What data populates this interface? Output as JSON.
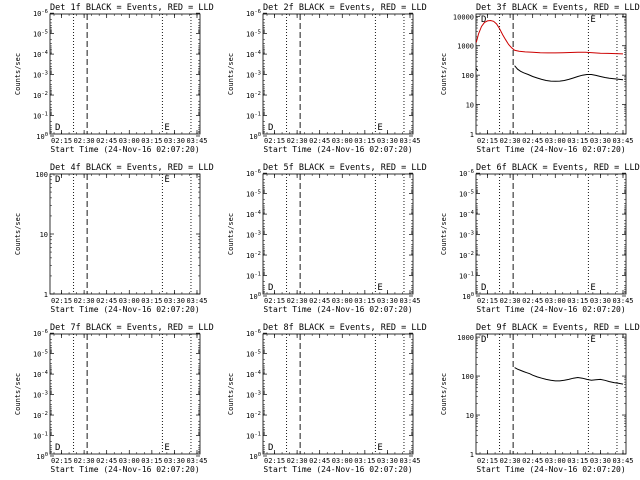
{
  "chart_data": [
    {
      "type": "line",
      "title": "Det 1f BLACK = Events, RED = LLD",
      "xlabel": "Start Time (24-Nov-16 02:07:20)",
      "ylabel": "Counts/sec",
      "yscale": "log",
      "ylim": [
        0.8,
        1.1e-06
      ],
      "yticks": [
        "10^0",
        "10^-1",
        "10^-2",
        "10^-3",
        "10^-4",
        "10^-5",
        "10^-6"
      ],
      "xticks": [
        "02:15",
        "02:30",
        "02:45",
        "03:00",
        "03:15",
        "03:30",
        "03:45"
      ],
      "xlim": [
        "02:07:20",
        "03:47:00"
      ],
      "dotted_lines": [
        "02:23:00",
        "03:22:00",
        "03:41:00"
      ],
      "dashed_lines": [
        "02:32:00"
      ],
      "annotations": [
        {
          "text": "D",
          "position": "bottom-left"
        },
        {
          "text": "E",
          "position": "bottom-right"
        }
      ],
      "series": []
    },
    {
      "type": "line",
      "title": "Det 2f BLACK = Events, RED = LLD",
      "xlabel": "Start Time (24-Nov-16 02:07:20)",
      "ylabel": "Counts/sec",
      "yscale": "log",
      "ylim": [
        0.8,
        1.1e-06
      ],
      "yticks": [
        "10^0",
        "10^-1",
        "10^-2",
        "10^-3",
        "10^-4",
        "10^-5",
        "10^-6"
      ],
      "xticks": [
        "02:15",
        "02:30",
        "02:45",
        "03:00",
        "03:15",
        "03:30",
        "03:45"
      ],
      "xlim": [
        "02:07:20",
        "03:47:00"
      ],
      "dotted_lines": [
        "02:23:00",
        "03:22:00",
        "03:41:00"
      ],
      "dashed_lines": [
        "02:32:00"
      ],
      "annotations": [
        {
          "text": "D",
          "position": "bottom-left"
        },
        {
          "text": "E",
          "position": "bottom-right"
        }
      ],
      "series": []
    },
    {
      "type": "line",
      "title": "Det 3f BLACK = Events, RED = LLD",
      "xlabel": "Start Time (24-Nov-16 02:07:20)",
      "ylabel": "Counts/sec",
      "yscale": "log",
      "ylim": [
        1,
        12000
      ],
      "yticks": [
        "1",
        "10",
        "100",
        "1000",
        "10000"
      ],
      "xticks": [
        "02:15",
        "02:30",
        "02:45",
        "03:00",
        "03:15",
        "03:30",
        "03:45"
      ],
      "xlim": [
        "02:07:20",
        "03:47:00"
      ],
      "dotted_lines": [
        "02:23:00",
        "03:22:00",
        "03:41:00"
      ],
      "dashed_lines": [
        "02:32:00"
      ],
      "annotations": [
        {
          "text": "D",
          "position": "top-left"
        },
        {
          "text": "E",
          "position": "top-right"
        }
      ],
      "series": [
        {
          "color": "#cc0000",
          "segments": [
            {
              "x": [
                "02:07:30",
                "02:09:00",
                "02:11:00",
                "02:13:00",
                "02:15:00",
                "02:17:00",
                "02:19:00",
                "02:21:00",
                "02:23:00",
                "02:25:00",
                "02:27:00",
                "02:29:00",
                "02:31:00",
                "02:33:00",
                "02:36:00",
                "02:40:00",
                "02:45:00",
                "02:50:00",
                "02:55:00",
                "03:00:00",
                "03:05:00",
                "03:10:00",
                "03:15:00",
                "03:20:00",
                "03:25:00",
                "03:30:00",
                "03:35:00",
                "03:40:00",
                "03:45:00"
              ],
              "y": [
                1300,
                2500,
                4500,
                6200,
                7000,
                7200,
                6800,
                5500,
                3800,
                2400,
                1600,
                1100,
                850,
                700,
                650,
                620,
                600,
                580,
                570,
                570,
                580,
                590,
                600,
                600,
                580,
                560,
                550,
                540,
                530
              ]
            }
          ]
        },
        {
          "color": "#000000",
          "segments": [
            {
              "x": [
                "02:07:30",
                "02:08:30"
              ],
              "y": [
                170,
                140
              ]
            },
            {
              "x": [
                "02:33:00",
                "02:35:00",
                "02:37:00",
                "02:39:00",
                "02:42:00",
                "02:45:00",
                "02:48:00",
                "02:51:00",
                "02:54:00",
                "02:57:00",
                "03:00:00",
                "03:03:00",
                "03:06:00",
                "03:09:00",
                "03:12:00",
                "03:15:00",
                "03:18:00",
                "03:21:00",
                "03:24:00",
                "03:27:00",
                "03:30:00",
                "03:33:00",
                "03:36:00",
                "03:39:00",
                "03:42:00",
                "03:45:00"
              ],
              "y": [
                210,
                160,
                135,
                120,
                105,
                90,
                80,
                72,
                66,
                63,
                62,
                63,
                66,
                72,
                80,
                90,
                100,
                105,
                105,
                98,
                90,
                83,
                78,
                75,
                73,
                70
              ]
            }
          ]
        }
      ]
    },
    {
      "type": "line",
      "title": "Det 4f BLACK = Events, RED = LLD",
      "xlabel": "Start Time (24-Nov-16 02:07:20)",
      "ylabel": "Counts/sec",
      "yscale": "log",
      "ylim": [
        1,
        100
      ],
      "yticks": [
        "1",
        "10",
        "100"
      ],
      "xticks": [
        "02:15",
        "02:30",
        "02:45",
        "03:00",
        "03:15",
        "03:30",
        "03:45"
      ],
      "xlim": [
        "02:07:20",
        "03:47:00"
      ],
      "dotted_lines": [
        "02:23:00",
        "03:22:00",
        "03:41:00"
      ],
      "dashed_lines": [
        "02:32:00"
      ],
      "annotations": [
        {
          "text": "D",
          "position": "top-left"
        },
        {
          "text": "E",
          "position": "top-right"
        }
      ],
      "series": []
    },
    {
      "type": "line",
      "title": "Det 5f BLACK = Events, RED = LLD",
      "xlabel": "Start Time (24-Nov-16 02:07:20)",
      "ylabel": "Counts/sec",
      "yscale": "log",
      "ylim": [
        0.8,
        1.1e-06
      ],
      "yticks": [
        "10^0",
        "10^-1",
        "10^-2",
        "10^-3",
        "10^-4",
        "10^-5",
        "10^-6"
      ],
      "xticks": [
        "02:15",
        "02:30",
        "02:45",
        "03:00",
        "03:15",
        "03:30",
        "03:45"
      ],
      "xlim": [
        "02:07:20",
        "03:47:00"
      ],
      "dotted_lines": [
        "02:23:00",
        "03:22:00",
        "03:41:00"
      ],
      "dashed_lines": [
        "02:32:00"
      ],
      "annotations": [
        {
          "text": "D",
          "position": "bottom-left"
        },
        {
          "text": "E",
          "position": "bottom-right"
        }
      ],
      "series": []
    },
    {
      "type": "line",
      "title": "Det 6f BLACK = Events, RED = LLD",
      "xlabel": "Start Time (24-Nov-16 02:07:20)",
      "ylabel": "Counts/sec",
      "yscale": "log",
      "ylim": [
        0.8,
        1.1e-06
      ],
      "yticks": [
        "10^0",
        "10^-1",
        "10^-2",
        "10^-3",
        "10^-4",
        "10^-5",
        "10^-6"
      ],
      "xticks": [
        "02:15",
        "02:30",
        "02:45",
        "03:00",
        "03:15",
        "03:30",
        "03:45"
      ],
      "xlim": [
        "02:07:20",
        "03:47:00"
      ],
      "dotted_lines": [
        "02:23:00",
        "03:22:00",
        "03:41:00"
      ],
      "dashed_lines": [
        "02:32:00"
      ],
      "annotations": [
        {
          "text": "D",
          "position": "bottom-left"
        },
        {
          "text": "E",
          "position": "bottom-right"
        }
      ],
      "series": []
    },
    {
      "type": "line",
      "title": "Det 7f BLACK = Events, RED = LLD",
      "xlabel": "Start Time (24-Nov-16 02:07:20)",
      "ylabel": "Counts/sec",
      "yscale": "log",
      "ylim": [
        0.8,
        1.1e-06
      ],
      "yticks": [
        "10^0",
        "10^-1",
        "10^-2",
        "10^-3",
        "10^-4",
        "10^-5",
        "10^-6"
      ],
      "xticks": [
        "02:15",
        "02:30",
        "02:45",
        "03:00",
        "03:15",
        "03:30",
        "03:45"
      ],
      "xlim": [
        "02:07:20",
        "03:47:00"
      ],
      "dotted_lines": [
        "02:23:00",
        "03:22:00",
        "03:41:00"
      ],
      "dashed_lines": [
        "02:32:00"
      ],
      "annotations": [
        {
          "text": "D",
          "position": "bottom-left"
        },
        {
          "text": "E",
          "position": "bottom-right"
        }
      ],
      "series": []
    },
    {
      "type": "line",
      "title": "Det 8f BLACK = Events, RED = LLD",
      "xlabel": "Start Time (24-Nov-16 02:07:20)",
      "ylabel": "Counts/sec",
      "yscale": "log",
      "ylim": [
        0.8,
        1.1e-06
      ],
      "yticks": [
        "10^0",
        "10^-1",
        "10^-2",
        "10^-3",
        "10^-4",
        "10^-5",
        "10^-6"
      ],
      "xticks": [
        "02:15",
        "02:30",
        "02:45",
        "03:00",
        "03:15",
        "03:30",
        "03:45"
      ],
      "xlim": [
        "02:07:20",
        "03:47:00"
      ],
      "dotted_lines": [
        "02:23:00",
        "03:22:00",
        "03:41:00"
      ],
      "dashed_lines": [
        "02:32:00"
      ],
      "annotations": [
        {
          "text": "D",
          "position": "bottom-left"
        },
        {
          "text": "E",
          "position": "bottom-right"
        }
      ],
      "series": []
    },
    {
      "type": "line",
      "title": "Det 9f BLACK = Events, RED = LLD",
      "xlabel": "Start Time (24-Nov-16 02:07:20)",
      "ylabel": "Counts/sec",
      "yscale": "log",
      "ylim": [
        1,
        1200
      ],
      "yticks": [
        "1",
        "10",
        "100",
        "1000"
      ],
      "xticks": [
        "02:15",
        "02:30",
        "02:45",
        "03:00",
        "03:15",
        "03:30",
        "03:45"
      ],
      "xlim": [
        "02:07:20",
        "03:47:00"
      ],
      "dotted_lines": [
        "02:23:00",
        "03:22:00",
        "03:41:00"
      ],
      "dashed_lines": [
        "02:32:00"
      ],
      "annotations": [
        {
          "text": "D",
          "position": "top-left"
        },
        {
          "text": "E",
          "position": "top-right"
        }
      ],
      "series": [
        {
          "color": "#000000",
          "segments": [
            {
              "x": [
                "02:33:00",
                "02:35:00",
                "02:37:00",
                "02:39:00",
                "02:41:00",
                "02:43:00",
                "02:45:00",
                "02:48:00",
                "02:51:00",
                "02:54:00",
                "02:57:00",
                "03:00:00",
                "03:03:00",
                "03:06:00",
                "03:09:00",
                "03:12:00",
                "03:15:00",
                "03:18:00",
                "03:21:00",
                "03:24:00",
                "03:27:00",
                "03:30:00",
                "03:33:00",
                "03:36:00",
                "03:39:00",
                "03:42:00",
                "03:45:00"
              ],
              "y": [
                165,
                150,
                140,
                130,
                122,
                115,
                105,
                95,
                88,
                82,
                78,
                75,
                75,
                78,
                82,
                88,
                92,
                88,
                82,
                78,
                80,
                82,
                78,
                72,
                68,
                65,
                62
              ]
            }
          ]
        }
      ]
    }
  ]
}
